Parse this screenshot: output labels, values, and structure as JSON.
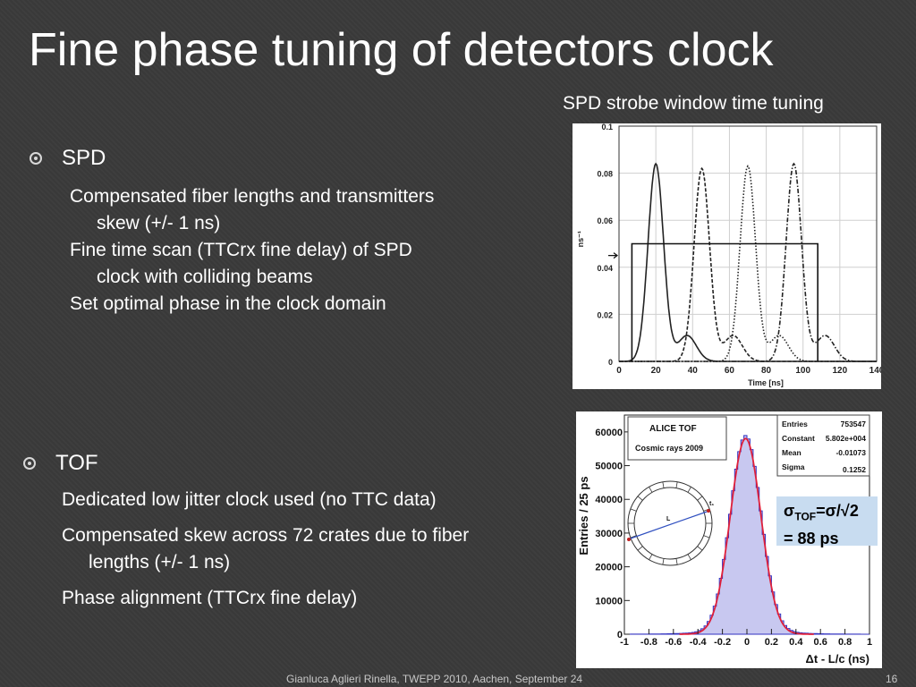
{
  "slide": {
    "title": "Fine phase tuning of detectors clock",
    "caption": "SPD strobe window time tuning",
    "footer": "Gianluca Aglieri Rinella, TWEPP 2010, Aachen, September 24",
    "page_number": "16"
  },
  "sections": [
    {
      "heading": "SPD",
      "items": [
        [
          "Compensated fiber lengths and transmitters",
          "skew (+/- 1 ns)"
        ],
        [
          "Fine time scan (TTCrx fine delay) of SPD",
          "clock with colliding beams"
        ],
        [
          "Set optimal phase in the clock domain"
        ]
      ]
    },
    {
      "heading": "TOF",
      "items": [
        [
          "Dedicated low jitter clock used (no TTC data)"
        ],
        [
          "Compensated skew across 72 crates due to fiber",
          "lengths (+/- 1 ns)"
        ],
        [
          "Phase alignment (TTCrx fine delay)"
        ]
      ]
    }
  ],
  "sigma_label": {
    "line1_sym": "σ",
    "line1_sub": "TOF",
    "line1_rest": "=σ/√2",
    "line2": "= 88 ps"
  },
  "chart_data": [
    {
      "type": "line",
      "xlabel": "Time [ns]",
      "ylabel": "ns⁻¹",
      "xlim": [
        0,
        140
      ],
      "ylim": [
        0,
        0.1
      ],
      "x_ticks": [
        0,
        20,
        40,
        60,
        80,
        100,
        120,
        140
      ],
      "y_ticks": [
        0,
        0.02,
        0.04,
        0.06,
        0.08,
        0.1
      ],
      "y_tick_labels": [
        "0",
        "0.02",
        "0.04",
        "0.06",
        "0.08",
        "0.1"
      ],
      "grid": true,
      "peaks": [
        {
          "center": 20,
          "height": 0.084,
          "style": "solid"
        },
        {
          "center": 45,
          "height": 0.082,
          "style": "dash"
        },
        {
          "center": 70,
          "height": 0.083,
          "style": "dot"
        },
        {
          "center": 95,
          "height": 0.084,
          "style": "dashdot"
        }
      ],
      "strobe_window": {
        "x_start": 7,
        "x_end": 108,
        "level": 0.05
      }
    },
    {
      "type": "histogram",
      "title": "ALICE TOF",
      "subtitle": "Cosmic rays 2009",
      "xlabel": "Δt - L/c (ns)",
      "ylabel": "Entries / 25 ps",
      "xlim": [
        -1,
        1
      ],
      "ylim": [
        0,
        65000
      ],
      "x_ticks": [
        -1,
        -0.8,
        -0.6,
        -0.4,
        -0.2,
        0,
        0.2,
        0.4,
        0.6,
        0.8,
        1
      ],
      "y_ticks": [
        0,
        10000,
        20000,
        30000,
        40000,
        50000,
        60000
      ],
      "stats": [
        {
          "label": "Entries",
          "value": "753547"
        },
        {
          "label": "Constant",
          "value": "5.802e+004"
        },
        {
          "label": "Mean",
          "value": "-0.01073"
        },
        {
          "label": "Sigma",
          "value": "0.1252"
        }
      ],
      "gauss": {
        "constant": 58020,
        "mean": -0.01073,
        "sigma": 0.1252
      },
      "fill_color": "#c8c8f0",
      "hist_color": "#3030c0",
      "fit_color": "#e0203a",
      "inset": {
        "label_L": "L",
        "label_t": "t₁"
      }
    }
  ]
}
